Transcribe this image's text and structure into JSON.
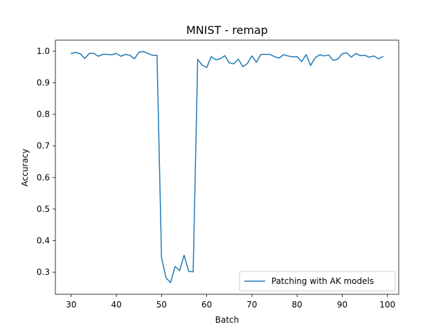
{
  "chart_data": {
    "type": "line",
    "title": "MNIST - remap",
    "xlabel": "Batch",
    "ylabel": "Accuracy",
    "xlim": [
      26.5,
      102.5
    ],
    "ylim": [
      0.23,
      1.035
    ],
    "xticks": [
      30,
      40,
      50,
      60,
      70,
      80,
      90,
      100
    ],
    "yticks": [
      0.3,
      0.4,
      0.5,
      0.6,
      0.7,
      0.8,
      0.9,
      1.0
    ],
    "ytick_labels": [
      "0.3",
      "0.4",
      "0.5",
      "0.6",
      "0.7",
      "0.8",
      "0.9",
      "1.0"
    ],
    "grid": false,
    "legend_position": "lower-right",
    "series": [
      {
        "name": "Patching with AK models",
        "color": "#1f77b4",
        "x": [
          30,
          31,
          32,
          33,
          34,
          35,
          36,
          37,
          38,
          39,
          40,
          41,
          42,
          43,
          44,
          45,
          46,
          47,
          48,
          49,
          50,
          51,
          52,
          53,
          54,
          55,
          56,
          57,
          58,
          59,
          60,
          61,
          62,
          63,
          64,
          65,
          66,
          67,
          68,
          69,
          70,
          71,
          72,
          73,
          74,
          75,
          76,
          77,
          78,
          79,
          80,
          81,
          82,
          83,
          84,
          85,
          86,
          87,
          88,
          89,
          90,
          91,
          92,
          93,
          94,
          95,
          96,
          97,
          98,
          99
        ],
        "y": [
          0.993,
          0.996,
          0.992,
          0.977,
          0.993,
          0.993,
          0.984,
          0.99,
          0.99,
          0.989,
          0.993,
          0.984,
          0.99,
          0.987,
          0.976,
          0.997,
          0.999,
          0.993,
          0.987,
          0.987,
          0.346,
          0.282,
          0.267,
          0.318,
          0.305,
          0.354,
          0.303,
          0.301,
          0.974,
          0.956,
          0.948,
          0.983,
          0.973,
          0.976,
          0.986,
          0.963,
          0.96,
          0.975,
          0.951,
          0.961,
          0.985,
          0.965,
          0.99,
          0.99,
          0.99,
          0.983,
          0.978,
          0.989,
          0.985,
          0.982,
          0.983,
          0.967,
          0.989,
          0.955,
          0.979,
          0.989,
          0.985,
          0.988,
          0.971,
          0.975,
          0.992,
          0.995,
          0.981,
          0.993,
          0.986,
          0.987,
          0.981,
          0.985,
          0.976,
          0.983
        ]
      }
    ]
  }
}
